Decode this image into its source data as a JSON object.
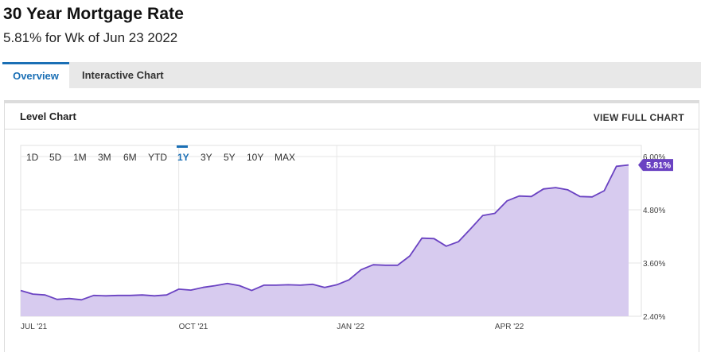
{
  "header": {
    "title": "30 Year Mortgage Rate",
    "subtitle": "5.81% for Wk of Jun 23 2022"
  },
  "tabs": [
    {
      "label": "Overview",
      "active": true
    },
    {
      "label": "Interactive Chart",
      "active": false
    }
  ],
  "panel": {
    "title": "Level Chart",
    "view_full_label": "VIEW FULL CHART"
  },
  "ranges": [
    "1D",
    "5D",
    "1M",
    "3M",
    "6M",
    "YTD",
    "1Y",
    "3Y",
    "5Y",
    "10Y",
    "MAX"
  ],
  "active_range": "1Y",
  "colors": {
    "accent": "#1a6fb5",
    "line": "#6a42c2",
    "fill": "#d7cbef",
    "badge": "#6a42c2"
  },
  "chart_data": {
    "type": "area",
    "title": "",
    "xlabel": "",
    "ylabel": "",
    "ylim": [
      2.4,
      6.0
    ],
    "y_ticks": [
      "2.40%",
      "3.60%",
      "4.80%",
      "6.00%"
    ],
    "x_ticks": [
      "JUL '21",
      "OCT '21",
      "JAN '22",
      "APR '22"
    ],
    "last_value_label": "5.81%",
    "grid": true,
    "series": [
      {
        "values": [
          2.98,
          2.9,
          2.88,
          2.78,
          2.8,
          2.77,
          2.87,
          2.86,
          2.87,
          2.87,
          2.88,
          2.86,
          2.88,
          3.01,
          2.99,
          3.05,
          3.09,
          3.14,
          3.09,
          2.98,
          3.1,
          3.1,
          3.11,
          3.1,
          3.12,
          3.05,
          3.11,
          3.22,
          3.45,
          3.56,
          3.55,
          3.55,
          3.76,
          4.16,
          4.15,
          3.98,
          4.08,
          4.37,
          4.67,
          4.72,
          5.0,
          5.11,
          5.1,
          5.27,
          5.3,
          5.25,
          5.1,
          5.09,
          5.23,
          5.78,
          5.81
        ]
      }
    ]
  }
}
